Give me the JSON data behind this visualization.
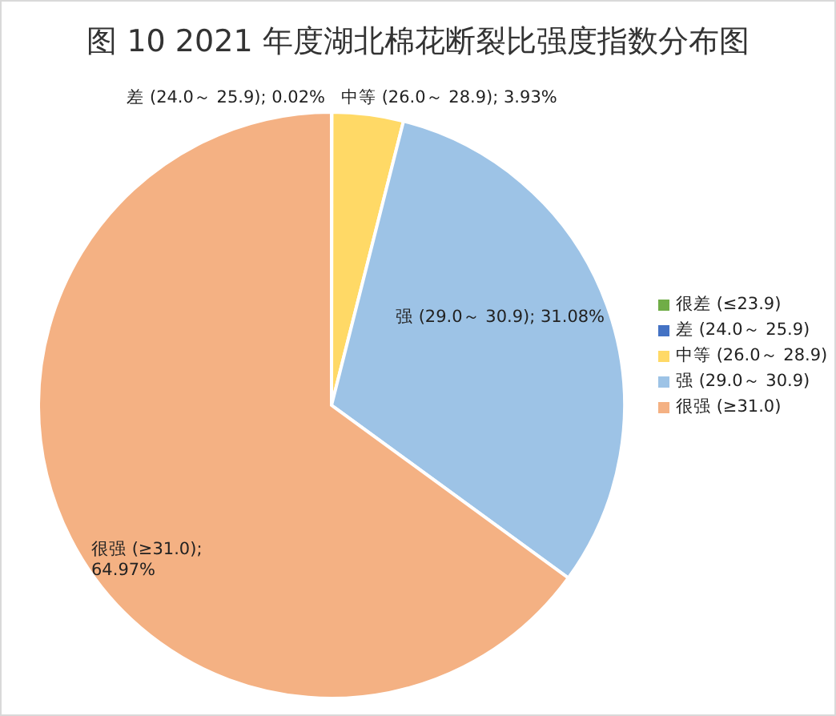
{
  "chart_data": {
    "type": "pie",
    "title": "图 10  2021 年度湖北棉花断裂比强度指数分布图",
    "categories": [
      "很差 (≤23.9)",
      "差 (24.0～ 25.9)",
      "中等 (26.0～ 28.9)",
      "强 (29.0～ 30.9)",
      "很强 (≥31.0)"
    ],
    "values": [
      0,
      0.02,
      3.93,
      31.08,
      64.97
    ],
    "colors": [
      "#70ad47",
      "#4472c4",
      "#ffd966",
      "#9dc3e6",
      "#f4b183"
    ],
    "value_labels": [
      null,
      "差 (24.0～ 25.9); 0.02%",
      "中等 (26.0～ 28.9); 3.93%",
      "强 (29.0～ 30.9); 31.08%",
      "很强 (≥31.0); 64.97%"
    ],
    "legend": "right"
  }
}
